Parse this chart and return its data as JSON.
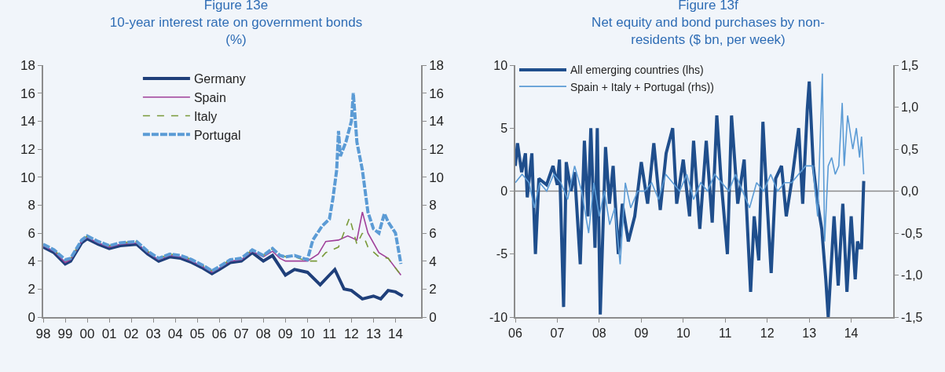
{
  "chart_data": [
    {
      "type": "line",
      "title": "Figure 13e",
      "subtitle": "10-year interest rate on government bonds (%)",
      "legend": "top",
      "grid": false,
      "marker": "none",
      "xlim": [
        "1998-01-01",
        "2015-03-01"
      ],
      "xticks": [
        {
          "value": "1998-01-01",
          "label": "98"
        },
        {
          "value": "1999-01-01",
          "label": "99"
        },
        {
          "value": "2000-01-01",
          "label": "00"
        },
        {
          "value": "2001-01-01",
          "label": "01"
        },
        {
          "value": "2002-01-01",
          "label": "02"
        },
        {
          "value": "2003-01-01",
          "label": "03"
        },
        {
          "value": "2004-01-01",
          "label": "04"
        },
        {
          "value": "2005-01-01",
          "label": "05"
        },
        {
          "value": "2006-01-01",
          "label": "06"
        },
        {
          "value": "2007-01-01",
          "label": "07"
        },
        {
          "value": "2008-01-01",
          "label": "08"
        },
        {
          "value": "2009-01-01",
          "label": "09"
        },
        {
          "value": "2010-01-01",
          "label": "10"
        },
        {
          "value": "2011-01-01",
          "label": "11"
        },
        {
          "value": "2012-01-01",
          "label": "12"
        },
        {
          "value": "2013-01-01",
          "label": "13"
        },
        {
          "value": "2014-01-01",
          "label": "14"
        }
      ],
      "ylim": [
        0,
        18
      ],
      "yticks": [
        0,
        2,
        4,
        6,
        8,
        10,
        12,
        14,
        16,
        18
      ],
      "y2lim": [
        0,
        18
      ],
      "y2ticks": [
        0,
        2,
        4,
        6,
        8,
        10,
        12,
        14,
        16,
        18
      ],
      "series": [
        {
          "name": "Germany",
          "color": "#1f3f7a",
          "line_style": "solid",
          "x": [
            "1998-01",
            "1998-07",
            "1999-01",
            "1999-04",
            "1999-10",
            "2000-01",
            "2000-07",
            "2001-01",
            "2001-07",
            "2002-04",
            "2002-10",
            "2003-04",
            "2003-10",
            "2004-04",
            "2004-10",
            "2005-04",
            "2005-09",
            "2006-01",
            "2006-07",
            "2007-01",
            "2007-07",
            "2008-01",
            "2008-06",
            "2008-10",
            "2009-01",
            "2009-06",
            "2010-01",
            "2010-08",
            "2011-01",
            "2011-04",
            "2011-09",
            "2012-01",
            "2012-07",
            "2013-01",
            "2013-05",
            "2013-09",
            "2014-01",
            "2014-05"
          ],
          "values": [
            5.0,
            4.6,
            3.8,
            4.0,
            5.3,
            5.6,
            5.2,
            4.9,
            5.1,
            5.2,
            4.5,
            4.0,
            4.3,
            4.2,
            3.9,
            3.5,
            3.1,
            3.4,
            3.9,
            4.0,
            4.6,
            4.0,
            4.4,
            3.6,
            3.0,
            3.4,
            3.2,
            2.3,
            3.0,
            3.4,
            2.0,
            1.9,
            1.3,
            1.5,
            1.3,
            1.9,
            1.8,
            1.5
          ]
        },
        {
          "name": "Spain",
          "color": "#a0409a",
          "line_style": "solid",
          "x": [
            "1998-01",
            "1998-07",
            "1999-01",
            "1999-04",
            "1999-10",
            "2000-01",
            "2000-07",
            "2001-01",
            "2001-07",
            "2002-04",
            "2002-10",
            "2003-04",
            "2003-10",
            "2004-04",
            "2004-10",
            "2005-04",
            "2005-09",
            "2006-01",
            "2006-07",
            "2007-01",
            "2007-07",
            "2008-01",
            "2008-06",
            "2008-10",
            "2009-01",
            "2009-06",
            "2010-01",
            "2010-07",
            "2010-11",
            "2011-06",
            "2011-11",
            "2012-04",
            "2012-07",
            "2012-10",
            "2013-04",
            "2013-09",
            "2014-04"
          ],
          "values": [
            5.1,
            4.7,
            3.9,
            4.1,
            5.4,
            5.7,
            5.3,
            5.0,
            5.2,
            5.3,
            4.6,
            4.1,
            4.4,
            4.3,
            4.0,
            3.6,
            3.2,
            3.5,
            4.0,
            4.1,
            4.7,
            4.3,
            4.7,
            4.2,
            4.0,
            4.0,
            4.0,
            4.5,
            5.4,
            5.5,
            5.8,
            5.5,
            7.5,
            6.0,
            4.6,
            4.2,
            3.0
          ]
        },
        {
          "name": "Italy",
          "color": "#7a9a3a",
          "line_style": "dashed",
          "x": [
            "1998-01",
            "1998-07",
            "1999-01",
            "1999-04",
            "1999-10",
            "2000-01",
            "2000-07",
            "2001-01",
            "2001-07",
            "2002-04",
            "2002-10",
            "2003-04",
            "2003-10",
            "2004-04",
            "2004-10",
            "2005-04",
            "2005-09",
            "2006-01",
            "2006-07",
            "2007-01",
            "2007-07",
            "2008-01",
            "2008-06",
            "2008-10",
            "2009-01",
            "2009-06",
            "2010-01",
            "2010-07",
            "2010-11",
            "2011-06",
            "2011-12",
            "2012-04",
            "2012-07",
            "2012-10",
            "2013-04",
            "2013-09",
            "2014-04"
          ],
          "values": [
            5.2,
            4.8,
            4.0,
            4.2,
            5.5,
            5.8,
            5.4,
            5.1,
            5.3,
            5.4,
            4.7,
            4.2,
            4.5,
            4.4,
            4.1,
            3.7,
            3.3,
            3.6,
            4.1,
            4.2,
            4.8,
            4.4,
            4.9,
            4.5,
            4.3,
            4.3,
            4.0,
            4.0,
            4.6,
            5.0,
            7.1,
            5.2,
            6.0,
            5.0,
            4.3,
            4.2,
            3.0
          ]
        },
        {
          "name": "Portugal",
          "color": "#5b9bd5",
          "line_style": "dashed",
          "x": [
            "1998-01",
            "1998-07",
            "1999-01",
            "1999-04",
            "1999-10",
            "2000-01",
            "2000-07",
            "2001-01",
            "2001-07",
            "2002-04",
            "2002-10",
            "2003-04",
            "2003-10",
            "2004-04",
            "2004-10",
            "2005-04",
            "2005-09",
            "2006-01",
            "2006-07",
            "2007-01",
            "2007-07",
            "2008-01",
            "2008-06",
            "2008-10",
            "2009-01",
            "2009-06",
            "2010-01",
            "2010-04",
            "2010-09",
            "2011-01",
            "2011-03",
            "2011-05",
            "2011-06",
            "2011-07",
            "2011-10",
            "2012-01",
            "2012-02",
            "2012-04",
            "2012-07",
            "2012-10",
            "2013-01",
            "2013-04",
            "2013-07",
            "2013-09",
            "2014-01",
            "2014-04"
          ],
          "values": [
            5.2,
            4.8,
            4.1,
            4.2,
            5.5,
            5.8,
            5.4,
            5.1,
            5.3,
            5.4,
            4.7,
            4.2,
            4.5,
            4.4,
            4.1,
            3.7,
            3.3,
            3.6,
            4.1,
            4.2,
            4.8,
            4.4,
            4.9,
            4.4,
            4.3,
            4.4,
            4.1,
            5.5,
            6.5,
            7.0,
            8.5,
            10.5,
            13.3,
            11.5,
            12.5,
            14.0,
            16.0,
            12.5,
            10.5,
            7.5,
            6.3,
            6.0,
            7.4,
            6.8,
            6.0,
            3.8
          ]
        }
      ]
    },
    {
      "type": "line",
      "title": "Figure 13f",
      "subtitle": "Net equity and bond purchases by non-residents ($ bn, per week)",
      "legend": "top left",
      "grid": false,
      "marker": "none",
      "xlim": [
        "2006-01-01",
        "2015-01-01"
      ],
      "xticks": [
        {
          "value": "2006-01-01",
          "label": "06"
        },
        {
          "value": "2007-01-01",
          "label": "07"
        },
        {
          "value": "2008-01-01",
          "label": "08"
        },
        {
          "value": "2009-01-01",
          "label": "09"
        },
        {
          "value": "2010-01-01",
          "label": "10"
        },
        {
          "value": "2011-01-01",
          "label": "11"
        },
        {
          "value": "2012-01-01",
          "label": "12"
        },
        {
          "value": "2013-01-01",
          "label": "13"
        },
        {
          "value": "2014-01-01",
          "label": "14"
        }
      ],
      "ylim": [
        -10,
        10
      ],
      "yticks": [
        -10,
        -5,
        0,
        5,
        10
      ],
      "y2lim": [
        -1.5,
        1.5
      ],
      "y2ticks": [
        {
          "value": -1.5,
          "label": "-1,5"
        },
        {
          "value": -1,
          "label": "-1,0"
        },
        {
          "value": -0.5,
          "label": "-0,5"
        },
        {
          "value": 0,
          "label": "0,0"
        },
        {
          "value": 0.5,
          "label": "0,5"
        },
        {
          "value": 1,
          "label": "1,0"
        },
        {
          "value": 1.5,
          "label": "1,5"
        }
      ],
      "ref_lines": [
        {
          "axis": "y",
          "value": 0,
          "color": "#8c8c8c"
        }
      ],
      "series": [
        {
          "name": "All emerging countries (lhs)",
          "color": "#1f4e8c",
          "line_style": "solid",
          "x": [
            "2006-01-01",
            "2006-01-20",
            "2006-02-25",
            "2006-03-30",
            "2006-04-15",
            "2006-05-25",
            "2006-06-25",
            "2006-07-25",
            "2006-09-30",
            "2006-11-25",
            "2007-01-01",
            "2007-01-20",
            "2007-02-25",
            "2007-03-20",
            "2007-05-01",
            "2007-06-01",
            "2007-07-20",
            "2007-08-25",
            "2007-09-25",
            "2007-10-20",
            "2007-11-25",
            "2007-12-15",
            "2008-01-10",
            "2008-02-25",
            "2008-03-30",
            "2008-05-01",
            "2008-06-15",
            "2008-07-20",
            "2008-09-10",
            "2008-11-05",
            "2009-01-01",
            "2009-02-25",
            "2009-04-20",
            "2009-06-15",
            "2009-08-05",
            "2009-10-01",
            "2009-11-05",
            "2010-01-01",
            "2010-02-25",
            "2010-04-01",
            "2010-05-25",
            "2010-07-20",
            "2010-09-10",
            "2010-10-20",
            "2010-11-25",
            "2011-01-20",
            "2011-02-25",
            "2011-04-20",
            "2011-06-15",
            "2011-08-10",
            "2011-09-10",
            "2011-10-20",
            "2011-11-25",
            "2012-01-01",
            "2012-02-05",
            "2012-03-15",
            "2012-05-05",
            "2012-06-15",
            "2012-08-05",
            "2012-10-01",
            "2012-11-05",
            "2012-12-15",
            "2013-01-01",
            "2013-02-05",
            "2013-03-15",
            "2013-04-20",
            "2013-05-25",
            "2013-06-15",
            "2013-08-05",
            "2013-09-10",
            "2013-10-20",
            "2013-11-25",
            "2014-01-01",
            "2014-02-05",
            "2014-02-25",
            "2014-03-15",
            "2014-04-01",
            "2014-04-20"
          ],
          "values": [
            2,
            3.8,
            1.5,
            3.0,
            -0.5,
            3.0,
            -5,
            1,
            0.5,
            2.0,
            0.5,
            2.5,
            -9.2,
            2.3,
            0,
            1.5,
            -5.8,
            4.0,
            -2,
            5.0,
            -4.5,
            5.0,
            -9.8,
            3.5,
            -1,
            2,
            -5,
            -1,
            -4,
            -2,
            2.3,
            -1,
            3.8,
            -1.5,
            3.0,
            5.0,
            -1,
            2.5,
            -2,
            4.0,
            -3,
            4.0,
            -2.5,
            6.0,
            1.0,
            -5,
            6.0,
            -1,
            2.5,
            -8,
            -2,
            -5.5,
            5.5,
            -1,
            -6.5,
            1.0,
            2,
            -2,
            1.0,
            5.0,
            -1,
            6.5,
            8.7,
            2,
            -1,
            -3,
            -7,
            -10,
            -2,
            -7.5,
            -1,
            -8,
            -2,
            -7,
            -4,
            -4.5,
            -4.5,
            0.8
          ]
        },
        {
          "name": "Spain + Italy + Portugal (rhs))",
          "color": "#5b9bd5",
          "line_style": "solid",
          "axis": "y2",
          "x": [
            "2006-01-01",
            "2006-03-01",
            "2006-05-01",
            "2006-06-15",
            "2006-08-01",
            "2006-10-01",
            "2006-12-01",
            "2007-02-01",
            "2007-04-01",
            "2007-06-01",
            "2007-08-01",
            "2007-10-01",
            "2007-11-15",
            "2008-01-01",
            "2008-02-15",
            "2008-04-01",
            "2008-05-15",
            "2008-07-01",
            "2008-08-15",
            "2008-10-01",
            "2008-12-01",
            "2009-02-01",
            "2009-04-01",
            "2009-06-01",
            "2009-08-01",
            "2009-10-01",
            "2009-12-01",
            "2010-02-01",
            "2010-04-01",
            "2010-06-01",
            "2010-08-01",
            "2010-10-01",
            "2010-12-01",
            "2011-02-01",
            "2011-04-01",
            "2011-06-01",
            "2011-08-01",
            "2011-10-01",
            "2011-12-01",
            "2012-02-01",
            "2012-04-01",
            "2012-06-01",
            "2012-08-01",
            "2012-10-01",
            "2012-12-01",
            "2013-02-01",
            "2013-03-15",
            "2013-04-25",
            "2013-05-15",
            "2013-06-15",
            "2013-07-15",
            "2013-08-15",
            "2013-09-15",
            "2013-10-15",
            "2013-11-01",
            "2013-12-01",
            "2014-01-15",
            "2014-02-15",
            "2014-03-15",
            "2014-04-01",
            "2014-04-20"
          ],
          "values": [
            0.1,
            0.2,
            0.1,
            -0.2,
            0.1,
            0.0,
            0.2,
            0.1,
            -0.1,
            0.3,
            0.0,
            -0.5,
            0.1,
            -0.3,
            0.0,
            -0.4,
            -0.2,
            -0.87,
            0.1,
            -0.2,
            0.0,
            0.0,
            0.1,
            -0.1,
            0.2,
            0.1,
            0.0,
            0.2,
            -0.1,
            0.1,
            0.0,
            0.2,
            0.1,
            0.0,
            0.2,
            0.0,
            -0.2,
            0.1,
            0.0,
            0.2,
            0.0,
            0.1,
            0.1,
            0.2,
            0.3,
            0.3,
            -0.3,
            1.4,
            -0.6,
            0.3,
            0.4,
            0.2,
            0.3,
            1.05,
            0.3,
            0.9,
            0.5,
            0.75,
            0.4,
            0.65,
            0.2
          ]
        }
      ]
    }
  ]
}
